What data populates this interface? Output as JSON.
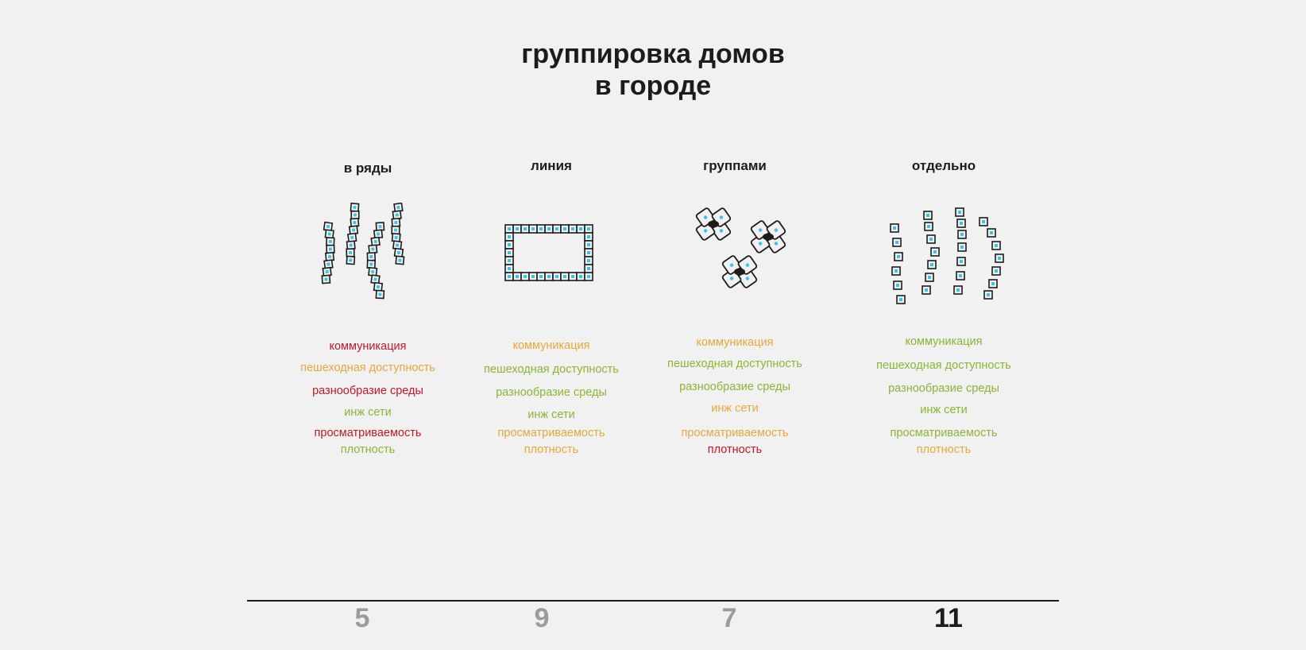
{
  "title": {
    "line1": "группировка домов",
    "line2": "в городе"
  },
  "criteria_labels": [
    "коммуникация",
    "пешеходная доступность",
    "разнообразие среды",
    "инж сети",
    "просматриваемость",
    "плотность"
  ],
  "colors": {
    "bad": "#c0182a",
    "medium": "#e6a83a",
    "good": "#8cb534",
    "module_fill": "#39c4e6",
    "stroke": "#1c1c1c"
  },
  "columns": [
    {
      "heading": "в ряды",
      "icon": "wavy-rows-icon",
      "criteria": [
        {
          "label": "коммуникация",
          "rating": "bad"
        },
        {
          "label": "пешеходная доступность",
          "rating": "medium"
        },
        {
          "label": "разнообразие среды",
          "rating": "bad"
        },
        {
          "label": "инж сети",
          "rating": "good"
        },
        {
          "label": "просматриваемость",
          "rating": "bad"
        },
        {
          "label": "плотность",
          "rating": "good"
        }
      ],
      "score": "5"
    },
    {
      "heading": "линия",
      "icon": "perimeter-line-icon",
      "criteria": [
        {
          "label": "коммуникация",
          "rating": "medium"
        },
        {
          "label": "пешеходная доступность",
          "rating": "good"
        },
        {
          "label": "разнообразие среды",
          "rating": "good"
        },
        {
          "label": "инж сети",
          "rating": "good"
        },
        {
          "label": "просматриваемость",
          "rating": "medium"
        },
        {
          "label": "плотность",
          "rating": "medium"
        }
      ],
      "score": "9"
    },
    {
      "heading": "группами",
      "icon": "cluster-groups-icon",
      "criteria": [
        {
          "label": "коммуникация",
          "rating": "medium"
        },
        {
          "label": "пешеходная доступность",
          "rating": "good"
        },
        {
          "label": "разнообразие среды",
          "rating": "good"
        },
        {
          "label": "инж сети",
          "rating": "medium"
        },
        {
          "label": "просматриваемость",
          "rating": "medium"
        },
        {
          "label": "плотность",
          "rating": "bad"
        }
      ],
      "score": "7"
    },
    {
      "heading": "отдельно",
      "icon": "separate-houses-icon",
      "criteria": [
        {
          "label": "коммуникация",
          "rating": "good"
        },
        {
          "label": "пешеходная доступность",
          "rating": "good"
        },
        {
          "label": "разнообразие среды",
          "rating": "good"
        },
        {
          "label": "инж сети",
          "rating": "good"
        },
        {
          "label": "просматриваемость",
          "rating": "good"
        },
        {
          "label": "плотность",
          "rating": "medium"
        }
      ],
      "score": "11"
    }
  ]
}
